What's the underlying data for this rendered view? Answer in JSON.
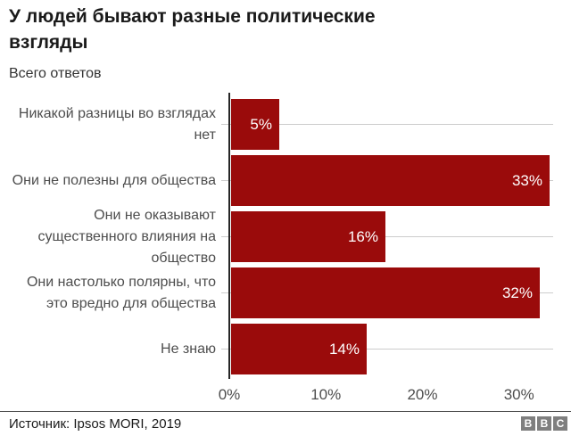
{
  "title": "У людей бывают разные политические взгляды",
  "subtitle": "Всего ответов",
  "chart_data": {
    "type": "bar",
    "orientation": "horizontal",
    "title": "У людей бывают разные политические взгляды",
    "subtitle": "Всего ответов",
    "categories": [
      "Никакой разницы во взглядах нет",
      "Они не полезны для общества",
      "Они не оказывают существенного влияния на общество",
      "Они настолько полярны, что это вредно для общества",
      "Не знаю"
    ],
    "values": [
      5,
      33,
      16,
      32,
      14
    ],
    "value_labels": [
      "5%",
      "33%",
      "16%",
      "32%",
      "14%"
    ],
    "x_ticks": [
      {
        "value": 0,
        "label": "0%"
      },
      {
        "value": 10,
        "label": "10%"
      },
      {
        "value": 20,
        "label": "20%"
      },
      {
        "value": 30,
        "label": "30%"
      }
    ],
    "xlim": [
      0,
      33.35
    ],
    "grid": "horizontal-category-lines",
    "legend": "none"
  },
  "footer": {
    "source": "Источник: Ipsos MORI, 2019",
    "logo_letters": [
      "B",
      "B",
      "C"
    ]
  },
  "colors": {
    "bar": "#9a0b0b",
    "value_label": "#ffffff",
    "axis": "#262626",
    "gridline": "#cccccc",
    "title_text": "#1a1a1a",
    "label_text": "#4d4d4d",
    "logo_bg": "#7f7f7f"
  }
}
